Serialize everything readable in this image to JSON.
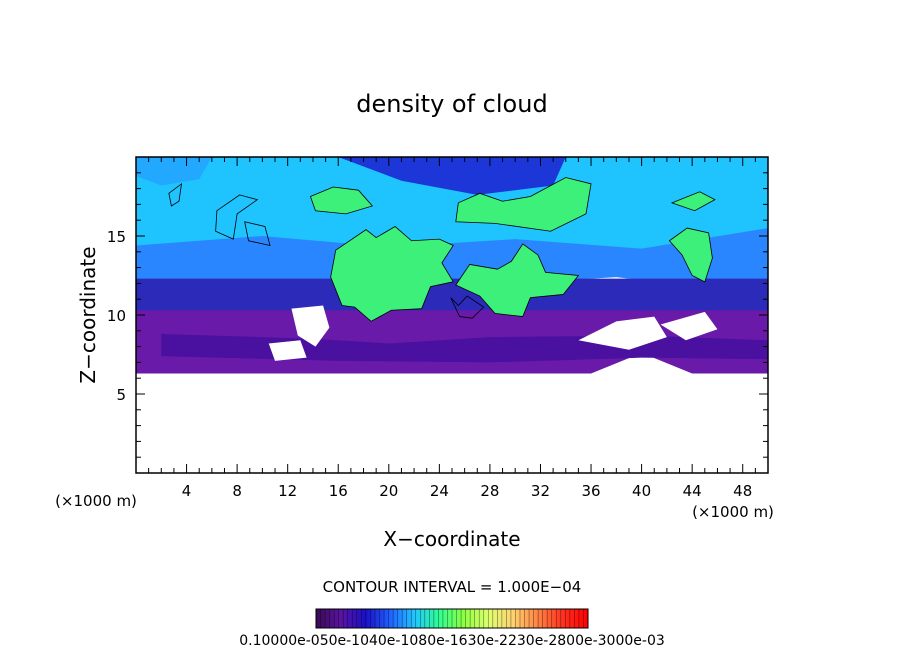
{
  "chart_data": {
    "type": "heatmap",
    "title": "density of cloud",
    "xlabel": "X−coordinate",
    "ylabel": "Z−coordinate",
    "x_unit_left": "(×1000 m)",
    "x_unit_right": "(×1000 m)",
    "xlim": [
      0,
      50
    ],
    "ylim": [
      0,
      20
    ],
    "x_ticks": [
      4,
      8,
      12,
      16,
      20,
      24,
      28,
      32,
      36,
      40,
      44,
      48
    ],
    "y_ticks": [
      5,
      10,
      15
    ],
    "cloud_base_km": 6.3,
    "cloud_top_km": 20,
    "contour_interval_text": "CONTOUR INTERVAL = 1.000E−04",
    "colorbar": {
      "label_text": "0.10000e-050e-1040e-1080e-1630e-2230e-2800e-3000e-03",
      "colors": [
        "#3a0a55",
        "#5a14a0",
        "#1a10c8",
        "#2060ff",
        "#20c8ff",
        "#30ff90",
        "#90ff40",
        "#e0ff70",
        "#ffd070",
        "#ff8040",
        "#ff3020",
        "#ff0000"
      ]
    }
  }
}
